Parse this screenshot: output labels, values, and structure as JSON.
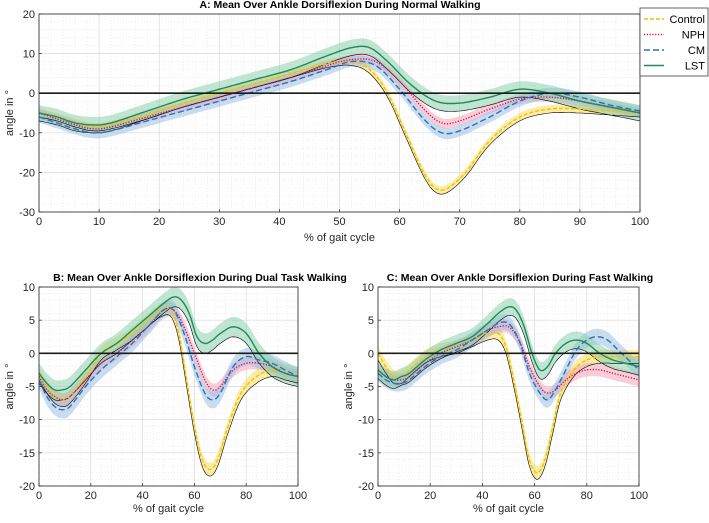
{
  "figure": {
    "series_styles": [
      {
        "name": "Control",
        "color": "#f2c200",
        "dash": "4,2"
      },
      {
        "name": "NPH",
        "color": "#d41159",
        "dash": "1.2,1.6"
      },
      {
        "name": "CM",
        "color": "#2f72b5",
        "dash": "6,3"
      },
      {
        "name": "LST",
        "color": "#1f8a5a",
        "dash": ""
      }
    ],
    "band_colors": [
      "#f8dc5c",
      "#f2a5b8",
      "#9dbfe3",
      "#8ccfae"
    ]
  },
  "chart_data": [
    {
      "id": "A",
      "type": "line",
      "title": "A: Mean Over Ankle Dorsiflexion During Normal Walking",
      "xlabel": "% of gait cycle",
      "ylabel": "angle in °",
      "xlim": [
        0,
        100
      ],
      "ylim": [
        -30,
        20
      ],
      "xticks": [
        "0",
        "10",
        "20",
        "30",
        "40",
        "50",
        "60",
        "70",
        "80",
        "90",
        "100"
      ],
      "yticks": [
        "-30",
        "-20",
        "-10",
        "0",
        "10",
        "20"
      ],
      "grid": true,
      "minor_grid": true,
      "legend": [
        "Control",
        "NPH",
        "CM",
        "LST"
      ],
      "legend_position": "top-right",
      "series": [
        {
          "name": "Control",
          "x": [
            0,
            3,
            6,
            9,
            12,
            18,
            24,
            30,
            36,
            42,
            48,
            52,
            55,
            58,
            61,
            64,
            66,
            68,
            71,
            75,
            80,
            85,
            90,
            95,
            100
          ],
          "y": [
            -5,
            -6,
            -7.5,
            -8.5,
            -8,
            -5.5,
            -2.5,
            0,
            2.5,
            5,
            7.5,
            8,
            6,
            0,
            -10,
            -20,
            -24,
            -24,
            -20,
            -12,
            -6,
            -4,
            -4,
            -4.5,
            -5
          ],
          "band": 1
        },
        {
          "name": "NPH",
          "x": [
            0,
            3,
            6,
            9,
            12,
            18,
            24,
            30,
            36,
            42,
            48,
            52,
            56,
            60,
            64,
            67,
            70,
            75,
            80,
            85,
            90,
            95,
            100
          ],
          "y": [
            -5,
            -6.5,
            -8,
            -9,
            -8.5,
            -6,
            -3.5,
            -1,
            1.5,
            4,
            7,
            8.5,
            8,
            3,
            -4,
            -7.5,
            -7,
            -4,
            -1.5,
            -1,
            -2,
            -3.5,
            -5
          ],
          "band": 1.2
        },
        {
          "name": "CM",
          "x": [
            0,
            3,
            6,
            9,
            12,
            18,
            24,
            30,
            36,
            42,
            48,
            52,
            56,
            60,
            64,
            67,
            70,
            75,
            80,
            85,
            90,
            95,
            100
          ],
          "y": [
            -6,
            -7.5,
            -9,
            -10,
            -9.5,
            -7,
            -4.5,
            -2,
            0.5,
            3,
            6,
            8,
            7,
            1,
            -6.5,
            -10,
            -9.5,
            -6,
            -2,
            0,
            -1,
            -3,
            -4.5
          ],
          "band": 1.4
        },
        {
          "name": "LST",
          "x": [
            0,
            3,
            6,
            9,
            12,
            18,
            24,
            30,
            36,
            42,
            48,
            52,
            55,
            58,
            62,
            66,
            70,
            75,
            80,
            85,
            90,
            95,
            100
          ],
          "y": [
            -5,
            -6,
            -7.5,
            -8,
            -7.5,
            -4.5,
            -1.5,
            1,
            3.5,
            6,
            9.5,
            11.5,
            11.5,
            8,
            2,
            -2,
            -2.5,
            -1,
            1,
            0,
            -2,
            -3.5,
            -5
          ],
          "band": 2
        }
      ]
    },
    {
      "id": "B",
      "type": "line",
      "title": "B: Mean Over Ankle Dorsiflexion During Dual Task Walking",
      "xlabel": "% of gait cycle",
      "ylabel": "angle in °",
      "xlim": [
        0,
        100
      ],
      "ylim": [
        -20,
        10
      ],
      "xticks": [
        "0",
        "20",
        "40",
        "60",
        "80",
        "100"
      ],
      "yticks": [
        "-20",
        "-15",
        "-10",
        "-5",
        "0",
        "5",
        "10"
      ],
      "grid": true,
      "minor_grid": true,
      "series": [
        {
          "name": "Control",
          "x": [
            0,
            3,
            6,
            9,
            12,
            18,
            24,
            30,
            36,
            42,
            47,
            51,
            54,
            57,
            60,
            63,
            66,
            69,
            73,
            78,
            84,
            90,
            95,
            100
          ],
          "y": [
            -3,
            -5,
            -6.5,
            -7,
            -6.5,
            -3.5,
            0,
            1.5,
            3,
            5,
            6.5,
            6.5,
            3,
            -4,
            -11,
            -16,
            -17.5,
            -16,
            -11,
            -6,
            -3.5,
            -2.5,
            -3,
            -3.5
          ],
          "band": 1
        },
        {
          "name": "NPH",
          "x": [
            0,
            3,
            6,
            9,
            12,
            18,
            24,
            30,
            36,
            42,
            48,
            52,
            56,
            60,
            64,
            67,
            70,
            75,
            80,
            85,
            90,
            95,
            100
          ],
          "y": [
            -3.5,
            -5.5,
            -6.5,
            -7,
            -6.5,
            -4,
            -1.5,
            0,
            2,
            4,
            6.5,
            6.5,
            4,
            0,
            -4,
            -5.5,
            -5,
            -2.5,
            -1.5,
            -1.5,
            -2,
            -3,
            -3.5
          ],
          "band": 1
        },
        {
          "name": "CM",
          "x": [
            0,
            3,
            6,
            9,
            12,
            18,
            24,
            30,
            36,
            42,
            48,
            52,
            56,
            60,
            64,
            67,
            70,
            75,
            80,
            85,
            90,
            95,
            100
          ],
          "y": [
            -4,
            -6.5,
            -8,
            -8.5,
            -8,
            -5,
            -2.5,
            -0.5,
            1.5,
            4,
            6.5,
            6.5,
            3,
            -2,
            -6,
            -7,
            -6,
            -2,
            -0.5,
            -1,
            -1.5,
            -2.5,
            -3.5
          ],
          "band": 1.3
        },
        {
          "name": "LST",
          "x": [
            0,
            3,
            6,
            9,
            12,
            18,
            24,
            30,
            36,
            42,
            48,
            52,
            55,
            58,
            61,
            64,
            67,
            70,
            75,
            80,
            85,
            90,
            95,
            100
          ],
          "y": [
            -3,
            -4.5,
            -5.5,
            -5.5,
            -5,
            -2.5,
            0,
            1.5,
            3.5,
            5.5,
            7.5,
            8.5,
            8,
            6,
            2.5,
            1.5,
            2,
            3,
            4,
            3,
            0,
            -2,
            -3,
            -3.5
          ],
          "band": 1.5
        }
      ]
    },
    {
      "id": "C",
      "type": "line",
      "title": "C: Mean Over Ankle Dorsiflexion During Fast Walking",
      "xlabel": "% of gait cycle",
      "ylabel": "angle in °",
      "xlim": [
        0,
        100
      ],
      "ylim": [
        -20,
        10
      ],
      "xticks": [
        "0",
        "20",
        "40",
        "60",
        "80",
        "100"
      ],
      "yticks": [
        "-20",
        "-15",
        "-10",
        "-5",
        "0",
        "5",
        "10"
      ],
      "grid": true,
      "minor_grid": true,
      "series": [
        {
          "name": "Control",
          "x": [
            0,
            3,
            6,
            9,
            12,
            18,
            24,
            30,
            36,
            42,
            46,
            49,
            52,
            55,
            58,
            61,
            64,
            67,
            70,
            75,
            80,
            85,
            90,
            95,
            100
          ],
          "y": [
            0,
            -2,
            -3.5,
            -3.5,
            -2.5,
            -0.5,
            0.5,
            1,
            2,
            3,
            3,
            1,
            -4,
            -10,
            -16,
            -18,
            -16,
            -11,
            -6,
            -2.5,
            -1,
            -0.5,
            -0.5,
            -0.5,
            -0.5
          ],
          "band": 1
        },
        {
          "name": "NPH",
          "x": [
            0,
            3,
            6,
            9,
            12,
            18,
            24,
            30,
            36,
            42,
            46,
            50,
            54,
            58,
            62,
            65,
            68,
            72,
            76,
            80,
            85,
            90,
            95,
            100
          ],
          "y": [
            -2.5,
            -3.5,
            -4,
            -4,
            -3.5,
            -1.5,
            0,
            1,
            2,
            3.5,
            4,
            4,
            2,
            -2,
            -5,
            -6,
            -5.5,
            -4,
            -3,
            -2.5,
            -2.5,
            -3,
            -3.5,
            -4
          ],
          "band": 1
        },
        {
          "name": "CM",
          "x": [
            0,
            3,
            6,
            9,
            12,
            18,
            24,
            30,
            36,
            42,
            46,
            50,
            54,
            58,
            62,
            65,
            68,
            72,
            76,
            80,
            84,
            88,
            92,
            96,
            100
          ],
          "y": [
            -3,
            -4,
            -4.5,
            -4.5,
            -4,
            -2,
            -0.5,
            0.5,
            2,
            3.5,
            4.5,
            4.5,
            2,
            -3,
            -6,
            -7,
            -5.5,
            -2.5,
            0.5,
            2,
            2.5,
            2,
            0.5,
            -1,
            -2.5
          ],
          "band": 1.2
        },
        {
          "name": "LST",
          "x": [
            0,
            3,
            6,
            9,
            12,
            18,
            24,
            30,
            36,
            42,
            46,
            50,
            53,
            56,
            59,
            62,
            65,
            68,
            72,
            76,
            80,
            85,
            90,
            95,
            100
          ],
          "y": [
            -2.5,
            -3.5,
            -4,
            -3.5,
            -3,
            -1,
            0.5,
            1.5,
            2.5,
            4.5,
            6,
            7,
            6.5,
            4,
            0,
            -2.5,
            -2,
            0,
            1.5,
            2,
            1.5,
            0,
            -1,
            -1.5,
            -2
          ],
          "band": 1.3
        }
      ]
    }
  ]
}
